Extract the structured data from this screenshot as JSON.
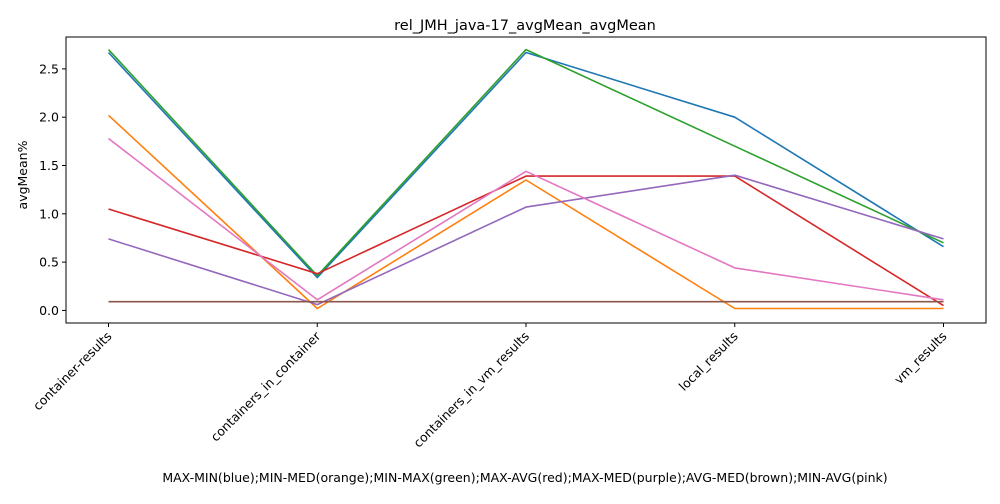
{
  "chart_data": {
    "type": "line",
    "title": "rel_JMH_java-17_avgMean_avgMean",
    "xlabel": "MAX-MIN(blue);MIN-MED(orange);MIN-MAX(green);MAX-AVG(red);MAX-MED(purple);AVG-MED(brown);MIN-AVG(pink)",
    "ylabel": "avgMean%",
    "ylim": [
      -0.13,
      2.83
    ],
    "yticks": [
      "0.0",
      "0.5",
      "1.0",
      "1.5",
      "2.0",
      "2.5"
    ],
    "grid": false,
    "categories": [
      "container-results",
      "containers_in_container",
      "containers_in_vm_results",
      "local_results",
      "vm_results"
    ],
    "series": [
      {
        "name": "MAX-MIN",
        "color": "#1f77b4",
        "values": [
          2.67,
          0.34,
          2.67,
          2.0,
          0.66
        ]
      },
      {
        "name": "MIN-MED",
        "color": "#ff7f0e",
        "values": [
          2.02,
          0.02,
          1.35,
          0.02,
          0.02
        ]
      },
      {
        "name": "MIN-MAX",
        "color": "#2ca02c",
        "values": [
          2.7,
          0.36,
          2.7,
          1.7,
          0.7
        ]
      },
      {
        "name": "MAX-AVG",
        "color": "#d62728",
        "values": [
          1.05,
          0.38,
          1.39,
          1.39,
          0.05
        ]
      },
      {
        "name": "MAX-MED",
        "color": "#9467bd",
        "values": [
          0.74,
          0.06,
          1.07,
          1.4,
          0.74
        ]
      },
      {
        "name": "AVG-MED",
        "color": "#8c564b",
        "values": [
          0.09,
          0.09,
          0.09,
          0.09,
          0.09
        ]
      },
      {
        "name": "MIN-AVG",
        "color": "#e377c2",
        "values": [
          1.78,
          0.11,
          1.44,
          0.44,
          0.11
        ]
      }
    ]
  }
}
